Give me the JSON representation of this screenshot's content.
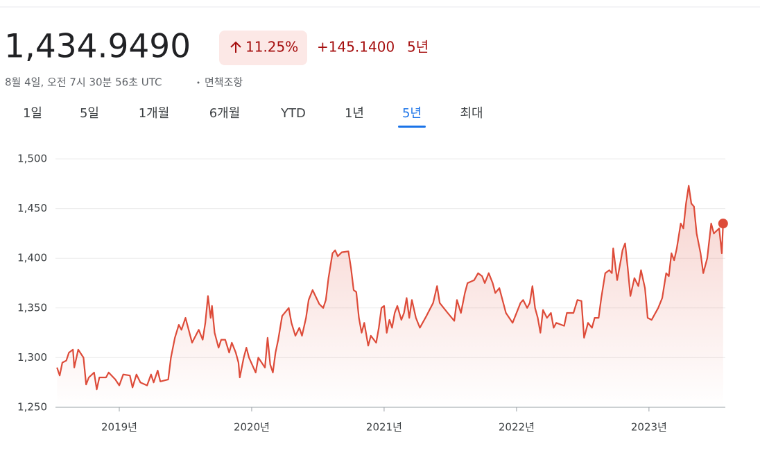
{
  "header": {
    "price": "1,434.9490",
    "change_percent": "11.25%",
    "change_value": "+145.1400",
    "period": "5년",
    "timestamp": "8월 4일, 오전 7시 30분 56초 UTC",
    "disclaimer": "면책조항"
  },
  "tabs": [
    "1일",
    "5일",
    "1개월",
    "6개월",
    "YTD",
    "1년",
    "5년",
    "최대"
  ],
  "selected_tab": "5년",
  "chart_data": {
    "type": "line",
    "color": "#dd4b39",
    "grid": true,
    "end_marker": true,
    "xlim": [
      2018.534,
      2023.561
    ],
    "xticks": [
      {
        "value": 2019,
        "label": "2019년"
      },
      {
        "value": 2020,
        "label": "2020년"
      },
      {
        "value": 2021,
        "label": "2021년"
      },
      {
        "value": 2022,
        "label": "2022년"
      },
      {
        "value": 2023,
        "label": "2023년"
      }
    ],
    "ylim": [
      1250,
      1500
    ],
    "yticks": [
      {
        "value": 1250,
        "label": "1,250"
      },
      {
        "value": 1300,
        "label": "1,300"
      },
      {
        "value": 1350,
        "label": "1,350"
      },
      {
        "value": 1400,
        "label": "1,400"
      },
      {
        "value": 1450,
        "label": "1,450"
      },
      {
        "value": 1500,
        "label": "1,500"
      }
    ],
    "x": [
      2018.53,
      2018.55,
      2018.57,
      2018.6,
      2018.62,
      2018.65,
      2018.66,
      2018.69,
      2018.73,
      2018.75,
      2018.77,
      2018.81,
      2018.83,
      2018.85,
      2018.9,
      2018.92,
      2018.97,
      2019.0,
      2019.03,
      2019.08,
      2019.1,
      2019.13,
      2019.16,
      2019.21,
      2019.24,
      2019.26,
      2019.29,
      2019.31,
      2019.37,
      2019.39,
      2019.42,
      2019.45,
      2019.47,
      2019.5,
      2019.52,
      2019.55,
      2019.6,
      2019.63,
      2019.65,
      2019.67,
      2019.69,
      2019.7,
      2019.72,
      2019.75,
      2019.77,
      2019.8,
      2019.83,
      2019.85,
      2019.88,
      2019.9,
      2019.91,
      2019.94,
      2019.96,
      2019.98,
      2020.03,
      2020.05,
      2020.1,
      2020.12,
      2020.14,
      2020.16,
      2020.18,
      2020.2,
      2020.23,
      2020.28,
      2020.3,
      2020.33,
      2020.36,
      2020.38,
      2020.41,
      2020.43,
      2020.46,
      2020.51,
      2020.54,
      2020.56,
      2020.58,
      2020.61,
      2020.63,
      2020.65,
      2020.68,
      2020.73,
      2020.75,
      2020.77,
      2020.79,
      2020.81,
      2020.83,
      2020.85,
      2020.88,
      2020.9,
      2020.94,
      2020.96,
      2020.98,
      2021.0,
      2021.02,
      2021.04,
      2021.06,
      2021.08,
      2021.1,
      2021.13,
      2021.15,
      2021.17,
      2021.19,
      2021.21,
      2021.24,
      2021.27,
      2021.32,
      2021.37,
      2021.4,
      2021.42,
      2021.48,
      2021.53,
      2021.55,
      2021.58,
      2021.61,
      2021.63,
      2021.68,
      2021.71,
      2021.74,
      2021.76,
      2021.79,
      2021.82,
      2021.84,
      2021.87,
      2021.9,
      2021.92,
      2021.97,
      2022.03,
      2022.05,
      2022.08,
      2022.1,
      2022.12,
      2022.14,
      2022.16,
      2022.18,
      2022.2,
      2022.23,
      2022.26,
      2022.28,
      2022.3,
      2022.36,
      2022.38,
      2022.43,
      2022.46,
      2022.49,
      2022.51,
      2022.54,
      2022.57,
      2022.59,
      2022.62,
      2022.64,
      2022.67,
      2022.7,
      2022.72,
      2022.73,
      2022.76,
      2022.79,
      2022.8,
      2022.82,
      2022.84,
      2022.86,
      2022.89,
      2022.92,
      2022.94,
      2022.97,
      2022.99,
      2023.02,
      2023.07,
      2023.1,
      2023.13,
      2023.15,
      2023.17,
      2023.19,
      2023.21,
      2023.24,
      2023.26,
      2023.28,
      2023.3,
      2023.32,
      2023.34,
      2023.36,
      2023.39,
      2023.41,
      2023.44,
      2023.47,
      2023.49,
      2023.53,
      2023.55,
      2023.56
    ],
    "values": [
      1290,
      1282,
      1295,
      1297,
      1305,
      1308,
      1290,
      1308,
      1300,
      1273,
      1280,
      1285,
      1268,
      1280,
      1280,
      1285,
      1278,
      1272,
      1283,
      1282,
      1270,
      1283,
      1275,
      1272,
      1283,
      1275,
      1287,
      1276,
      1278,
      1300,
      1320,
      1333,
      1328,
      1340,
      1330,
      1315,
      1328,
      1318,
      1335,
      1362,
      1340,
      1352,
      1325,
      1310,
      1318,
      1318,
      1305,
      1315,
      1305,
      1295,
      1280,
      1300,
      1310,
      1300,
      1285,
      1300,
      1290,
      1320,
      1293,
      1285,
      1305,
      1318,
      1342,
      1350,
      1335,
      1322,
      1330,
      1322,
      1340,
      1358,
      1368,
      1354,
      1350,
      1358,
      1380,
      1405,
      1408,
      1402,
      1406,
      1407,
      1390,
      1368,
      1366,
      1340,
      1325,
      1335,
      1312,
      1322,
      1315,
      1330,
      1350,
      1352,
      1325,
      1338,
      1330,
      1345,
      1352,
      1338,
      1345,
      1360,
      1340,
      1358,
      1340,
      1330,
      1342,
      1355,
      1372,
      1355,
      1345,
      1337,
      1358,
      1345,
      1365,
      1375,
      1378,
      1385,
      1382,
      1375,
      1385,
      1375,
      1365,
      1370,
      1355,
      1345,
      1335,
      1355,
      1358,
      1350,
      1355,
      1372,
      1350,
      1340,
      1325,
      1348,
      1340,
      1345,
      1330,
      1335,
      1332,
      1345,
      1345,
      1358,
      1357,
      1320,
      1335,
      1330,
      1340,
      1340,
      1360,
      1385,
      1388,
      1385,
      1410,
      1378,
      1400,
      1408,
      1415,
      1390,
      1362,
      1380,
      1372,
      1388,
      1370,
      1340,
      1338,
      1350,
      1360,
      1385,
      1382,
      1405,
      1398,
      1410,
      1435,
      1430,
      1455,
      1473,
      1455,
      1452,
      1425,
      1405,
      1385,
      1400,
      1435,
      1425,
      1430,
      1405,
      1434.949
    ]
  }
}
